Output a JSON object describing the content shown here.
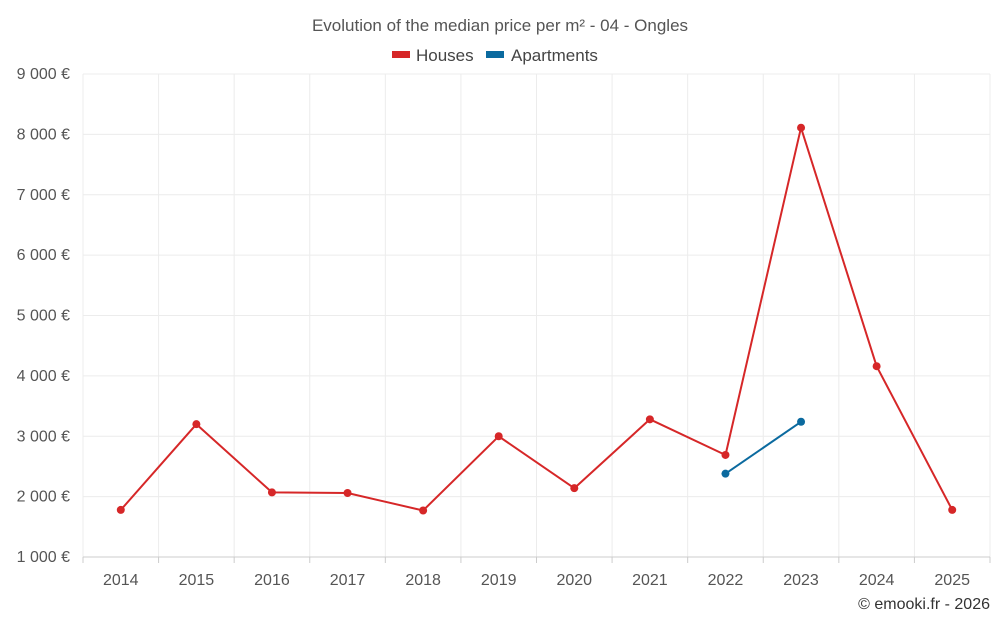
{
  "chart_data": {
    "type": "line",
    "title": "Evolution of the median price per m² - 04 - Ongles",
    "categories": [
      "2014",
      "2015",
      "2016",
      "2017",
      "2018",
      "2019",
      "2020",
      "2021",
      "2022",
      "2023",
      "2024",
      "2025"
    ],
    "y_ticks": [
      "1 000 €",
      "2 000 €",
      "3 000 €",
      "4 000 €",
      "5 000 €",
      "6 000 €",
      "7 000 €",
      "8 000 €",
      "9 000 €"
    ],
    "ylim": [
      1000,
      9000
    ],
    "grid": true,
    "legend_position": "top-center",
    "series": [
      {
        "name": "Houses",
        "color": "#d62728",
        "values": [
          1780,
          3200,
          2070,
          2060,
          1770,
          3000,
          2140,
          3280,
          2690,
          8110,
          4160,
          1780
        ]
      },
      {
        "name": "Apartments",
        "color": "#0b6a9f",
        "values": [
          null,
          null,
          null,
          null,
          null,
          null,
          null,
          null,
          2380,
          3240,
          null,
          null
        ]
      }
    ]
  },
  "credit": "© emooki.fr - 2026"
}
